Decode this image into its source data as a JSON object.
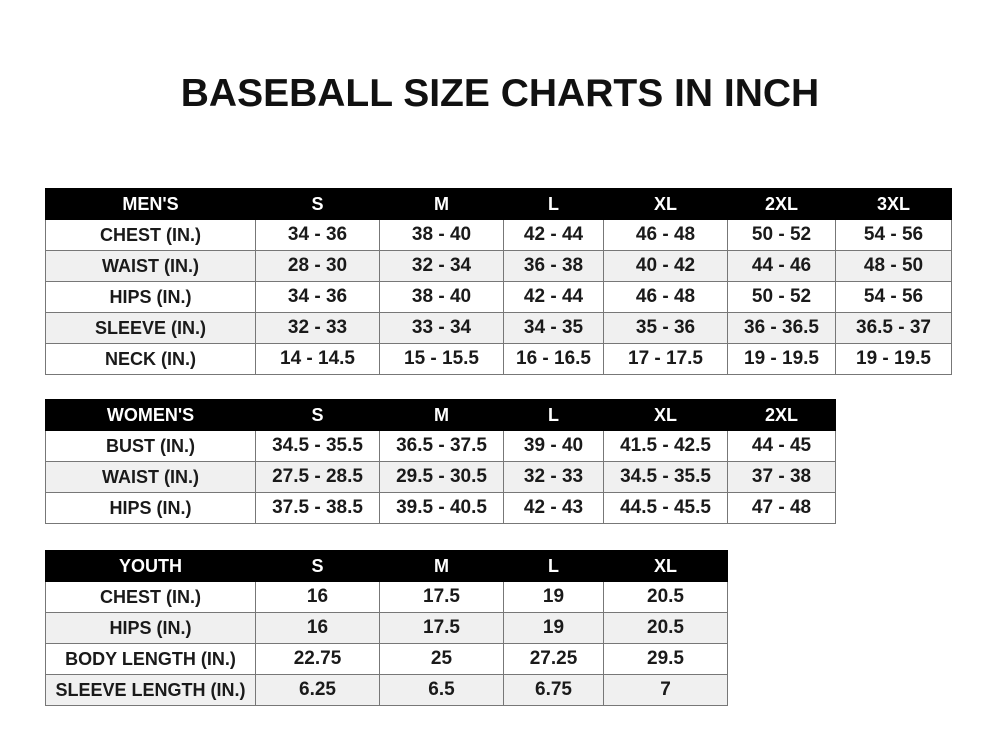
{
  "title": "BASEBALL SIZE CHARTS IN INCH",
  "tables": {
    "mens": {
      "headers": [
        "MEN'S",
        "S",
        "M",
        "L",
        "XL",
        "2XL",
        "3XL"
      ],
      "rows": [
        [
          "CHEST (IN.)",
          "34 - 36",
          "38 - 40",
          "42 - 44",
          "46 - 48",
          "50 - 52",
          "54 - 56"
        ],
        [
          "WAIST (IN.)",
          "28 - 30",
          "32 - 34",
          "36 - 38",
          "40 - 42",
          "44 - 46",
          "48 - 50"
        ],
        [
          "HIPS (IN.)",
          "34 - 36",
          "38 - 40",
          "42 - 44",
          "46 - 48",
          "50 - 52",
          "54 - 56"
        ],
        [
          "SLEEVE (IN.)",
          "32 - 33",
          "33 - 34",
          "34 - 35",
          "35 - 36",
          "36 - 36.5",
          "36.5 - 37"
        ],
        [
          "NECK (IN.)",
          "14 - 14.5",
          "15 - 15.5",
          "16 - 16.5",
          "17 - 17.5",
          "19 - 19.5",
          "19 - 19.5"
        ]
      ]
    },
    "womens": {
      "headers": [
        "WOMEN'S",
        "S",
        "M",
        "L",
        "XL",
        "2XL"
      ],
      "rows": [
        [
          "BUST (IN.)",
          "34.5 - 35.5",
          "36.5 - 37.5",
          "39 - 40",
          "41.5 - 42.5",
          "44 - 45"
        ],
        [
          "WAIST (IN.)",
          "27.5 - 28.5",
          "29.5 - 30.5",
          "32 - 33",
          "34.5 - 35.5",
          "37 - 38"
        ],
        [
          "HIPS (IN.)",
          "37.5 - 38.5",
          "39.5 - 40.5",
          "42 - 43",
          "44.5 - 45.5",
          "47 - 48"
        ]
      ]
    },
    "youth": {
      "headers": [
        "YOUTH",
        "S",
        "M",
        "L",
        "XL"
      ],
      "rows": [
        [
          "CHEST (IN.)",
          "16",
          "17.5",
          "19",
          "20.5"
        ],
        [
          "HIPS (IN.)",
          "16",
          "17.5",
          "19",
          "20.5"
        ],
        [
          "BODY LENGTH (IN.)",
          "22.75",
          "25",
          "27.25",
          "29.5"
        ],
        [
          "SLEEVE LENGTH (IN.)",
          "6.25",
          "6.5",
          "6.75",
          "7"
        ]
      ]
    }
  }
}
